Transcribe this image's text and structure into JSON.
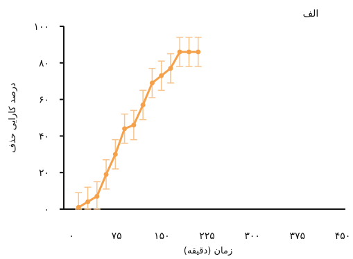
{
  "chart_data": {
    "type": "line",
    "panel_label": "الف",
    "xlabel": "زمان (دقیقه)",
    "ylabel": "درصد کارایی حذف",
    "xlim": [
      0,
      450
    ],
    "ylim": [
      0,
      100
    ],
    "x_ticks": [
      {
        "value": 0,
        "label": "۰"
      },
      {
        "value": 75,
        "label": "۷۵"
      },
      {
        "value": 150,
        "label": "۱۵۰"
      },
      {
        "value": 225,
        "label": "۲۲۵"
      },
      {
        "value": 300,
        "label": "۳۰۰"
      },
      {
        "value": 375,
        "label": "۳۷۵"
      },
      {
        "value": 450,
        "label": "۴۵۰"
      }
    ],
    "y_ticks": [
      {
        "value": 0,
        "label": "۰"
      },
      {
        "value": 20,
        "label": "۲۰"
      },
      {
        "value": 40,
        "label": "۴۰"
      },
      {
        "value": 60,
        "label": "۶۰"
      },
      {
        "value": 80,
        "label": "۸۰"
      },
      {
        "value": 100,
        "label": "۱۰۰"
      }
    ],
    "series": [
      {
        "color": "#f5a04a",
        "points": [
          {
            "x": 15,
            "y": 1,
            "err": 8
          },
          {
            "x": 30,
            "y": 4,
            "err": 8
          },
          {
            "x": 45,
            "y": 7,
            "err": 8
          },
          {
            "x": 60,
            "y": 19,
            "err": 8
          },
          {
            "x": 75,
            "y": 30,
            "err": 8
          },
          {
            "x": 90,
            "y": 44,
            "err": 8
          },
          {
            "x": 105,
            "y": 46,
            "err": 8
          },
          {
            "x": 120,
            "y": 57,
            "err": 8
          },
          {
            "x": 135,
            "y": 69,
            "err": 8
          },
          {
            "x": 150,
            "y": 73,
            "err": 8
          },
          {
            "x": 165,
            "y": 77,
            "err": 8
          },
          {
            "x": 180,
            "y": 86,
            "err": 8
          },
          {
            "x": 195,
            "y": 86,
            "err": 8
          },
          {
            "x": 210,
            "y": 86,
            "err": 8
          }
        ]
      }
    ],
    "grid": false,
    "legend": "none"
  }
}
